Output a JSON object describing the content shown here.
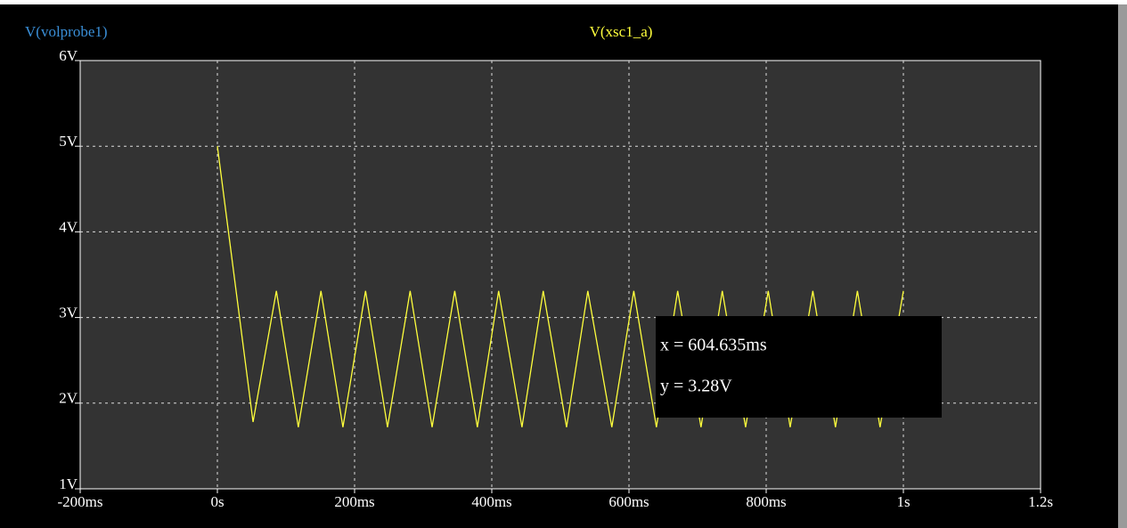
{
  "chart_data": {
    "type": "line",
    "ylabel": "V(volprobe1)",
    "x": [
      0,
      0.052,
      0.086,
      0.118,
      0.151,
      0.183,
      0.216,
      0.248,
      0.281,
      0.313,
      0.346,
      0.379,
      0.41,
      0.444,
      0.475,
      0.509,
      0.54,
      0.575,
      0.607,
      0.64,
      0.671,
      0.705,
      0.736,
      0.77,
      0.803,
      0.835,
      0.868,
      0.901,
      0.933,
      0.966,
      1.0
    ],
    "series": [
      {
        "name": "V(xsc1_a)",
        "color": "#ffff3c",
        "values": [
          5.0,
          1.78,
          3.31,
          1.72,
          3.31,
          1.72,
          3.31,
          1.72,
          3.31,
          1.72,
          3.31,
          1.72,
          3.31,
          1.72,
          3.31,
          1.72,
          3.31,
          1.72,
          3.31,
          1.72,
          3.31,
          1.72,
          3.31,
          1.72,
          3.31,
          1.72,
          3.31,
          1.72,
          3.31,
          1.72,
          3.31
        ]
      }
    ],
    "xlim": [
      -0.2,
      1.2
    ],
    "xticks": [
      {
        "value": -0.2,
        "label": "-200ms"
      },
      {
        "value": 0,
        "label": "0s"
      },
      {
        "value": 0.2,
        "label": "200ms"
      },
      {
        "value": 0.4,
        "label": "400ms"
      },
      {
        "value": 0.6,
        "label": "600ms"
      },
      {
        "value": 0.8,
        "label": "800ms"
      },
      {
        "value": 1.0,
        "label": "1s"
      },
      {
        "value": 1.2,
        "label": "1.2s"
      }
    ],
    "ylim": [
      1,
      6
    ],
    "yticks": [
      {
        "value": 1,
        "label": "1V"
      },
      {
        "value": 2,
        "label": "2V"
      },
      {
        "value": 3,
        "label": "3V"
      },
      {
        "value": 4,
        "label": "4V"
      },
      {
        "value": 5,
        "label": "5V"
      },
      {
        "value": 6,
        "label": "6V"
      }
    ],
    "grid": true,
    "annotations": [
      "x = 604.635ms",
      "y = 3.28V"
    ]
  }
}
